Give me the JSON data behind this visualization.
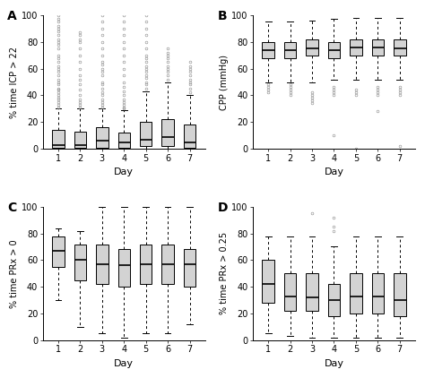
{
  "panels": [
    {
      "label": "A",
      "ylabel": "% time ICP > 22",
      "xlabel": "Day",
      "ylim": [
        0,
        100
      ],
      "yticks": [
        0,
        20,
        40,
        60,
        80,
        100
      ],
      "days": [
        1,
        2,
        3,
        4,
        5,
        6,
        7
      ],
      "boxes": [
        {
          "q1": 1,
          "median": 3,
          "q3": 14,
          "whislo": 0,
          "whishi": 30,
          "fliers_high": [
            31,
            33,
            35,
            37,
            38,
            40,
            42,
            44,
            45,
            48,
            50,
            52,
            55,
            58,
            60,
            62,
            65,
            68,
            70,
            75,
            78,
            80,
            82,
            85,
            88,
            90,
            92,
            95,
            97,
            100
          ]
        },
        {
          "q1": 1,
          "median": 3,
          "q3": 13,
          "whislo": 0,
          "whishi": 30,
          "fliers_high": [
            31,
            33,
            35,
            37,
            40,
            44,
            48,
            52,
            55,
            60,
            65,
            70,
            75,
            80,
            82,
            85,
            87
          ]
        },
        {
          "q1": 1,
          "median": 6,
          "q3": 16,
          "whislo": 0,
          "whishi": 30,
          "fliers_high": [
            31,
            33,
            35,
            37,
            40,
            42,
            45,
            48,
            50,
            55,
            58,
            60,
            63,
            65,
            70,
            75,
            80,
            85,
            90,
            95,
            100
          ]
        },
        {
          "q1": 1,
          "median": 5,
          "q3": 12,
          "whislo": 0,
          "whishi": 29,
          "fliers_high": [
            30,
            31,
            33,
            35,
            37,
            40,
            43,
            46,
            50,
            55,
            60,
            65,
            70,
            75,
            80,
            85,
            90,
            95,
            100
          ]
        },
        {
          "q1": 2,
          "median": 7,
          "q3": 20,
          "whislo": 0,
          "whishi": 43,
          "fliers_high": [
            45,
            48,
            50,
            53,
            55,
            58,
            60,
            62,
            65,
            68,
            70,
            75,
            80,
            85,
            90,
            95,
            100
          ]
        },
        {
          "q1": 2,
          "median": 9,
          "q3": 22,
          "whislo": 0,
          "whishi": 50,
          "fliers_high": [
            52,
            55,
            58,
            60,
            62,
            65,
            68,
            70,
            72,
            75
          ]
        },
        {
          "q1": 1,
          "median": 5,
          "q3": 18,
          "whislo": 0,
          "whishi": 40,
          "fliers_high": [
            42,
            45,
            48,
            50,
            52,
            55,
            58,
            60,
            62,
            65
          ]
        }
      ]
    },
    {
      "label": "B",
      "ylabel": "CPP (mmHg)",
      "xlabel": "Day",
      "ylim": [
        0,
        100
      ],
      "yticks": [
        0,
        20,
        40,
        60,
        80,
        100
      ],
      "days": [
        1,
        2,
        3,
        4,
        5,
        6,
        7
      ],
      "boxes": [
        {
          "q1": 68,
          "median": 74,
          "q3": 80,
          "whislo": 50,
          "whishi": 95,
          "fliers_low": [
            42,
            44,
            46,
            48
          ],
          "fliers_high": []
        },
        {
          "q1": 68,
          "median": 74,
          "q3": 80,
          "whislo": 50,
          "whishi": 95,
          "fliers_low": [
            40,
            42,
            44,
            46,
            48
          ],
          "fliers_high": []
        },
        {
          "q1": 70,
          "median": 75,
          "q3": 82,
          "whislo": 50,
          "whishi": 96,
          "fliers_low": [
            34,
            36,
            38,
            40,
            42
          ],
          "fliers_high": []
        },
        {
          "q1": 68,
          "median": 74,
          "q3": 80,
          "whislo": 52,
          "whishi": 97,
          "fliers_low": [
            10,
            40,
            42,
            44,
            46
          ],
          "fliers_high": []
        },
        {
          "q1": 70,
          "median": 76,
          "q3": 82,
          "whislo": 52,
          "whishi": 98,
          "fliers_low": [
            0,
            40,
            42,
            44
          ],
          "fliers_high": []
        },
        {
          "q1": 70,
          "median": 76,
          "q3": 82,
          "whislo": 52,
          "whishi": 98,
          "fliers_low": [
            28,
            40,
            42,
            44,
            46
          ],
          "fliers_high": []
        },
        {
          "q1": 70,
          "median": 75,
          "q3": 82,
          "whislo": 52,
          "whishi": 98,
          "fliers_low": [
            2,
            40,
            42,
            44,
            46
          ],
          "fliers_high": []
        }
      ]
    },
    {
      "label": "C",
      "ylabel": "% time PRx > 0",
      "xlabel": "Day",
      "ylim": [
        0,
        100
      ],
      "yticks": [
        0,
        20,
        40,
        60,
        80,
        100
      ],
      "days": [
        1,
        2,
        3,
        4,
        5,
        6,
        7
      ],
      "boxes": [
        {
          "q1": 55,
          "median": 67,
          "q3": 78,
          "whislo": 30,
          "whishi": 84,
          "fliers_low": [],
          "fliers_high": []
        },
        {
          "q1": 45,
          "median": 60,
          "q3": 72,
          "whislo": 10,
          "whishi": 82,
          "fliers_low": [],
          "fliers_high": []
        },
        {
          "q1": 42,
          "median": 57,
          "q3": 72,
          "whislo": 5,
          "whishi": 100,
          "fliers_low": [],
          "fliers_high": []
        },
        {
          "q1": 40,
          "median": 56,
          "q3": 68,
          "whislo": 2,
          "whishi": 100,
          "fliers_low": [],
          "fliers_high": []
        },
        {
          "q1": 42,
          "median": 57,
          "q3": 72,
          "whislo": 5,
          "whishi": 100,
          "fliers_low": [],
          "fliers_high": []
        },
        {
          "q1": 42,
          "median": 57,
          "q3": 72,
          "whislo": 5,
          "whishi": 100,
          "fliers_low": [],
          "fliers_high": []
        },
        {
          "q1": 40,
          "median": 57,
          "q3": 68,
          "whislo": 12,
          "whishi": 100,
          "fliers_low": [],
          "fliers_high": []
        }
      ]
    },
    {
      "label": "D",
      "ylabel": "% time PRx > 0.25",
      "xlabel": "Day",
      "ylim": [
        0,
        100
      ],
      "yticks": [
        0,
        20,
        40,
        60,
        80,
        100
      ],
      "days": [
        1,
        2,
        3,
        4,
        5,
        6,
        7
      ],
      "boxes": [
        {
          "q1": 28,
          "median": 42,
          "q3": 60,
          "whislo": 5,
          "whishi": 78,
          "fliers_low": [],
          "fliers_high": []
        },
        {
          "q1": 22,
          "median": 33,
          "q3": 50,
          "whislo": 3,
          "whishi": 78,
          "fliers_low": [],
          "fliers_high": []
        },
        {
          "q1": 22,
          "median": 32,
          "q3": 50,
          "whislo": 2,
          "whishi": 78,
          "fliers_low": [],
          "fliers_high": [
            95
          ]
        },
        {
          "q1": 18,
          "median": 30,
          "q3": 42,
          "whislo": 2,
          "whishi": 70,
          "fliers_low": [],
          "fliers_high": [
            82,
            85,
            92
          ]
        },
        {
          "q1": 20,
          "median": 33,
          "q3": 50,
          "whislo": 2,
          "whishi": 78,
          "fliers_low": [],
          "fliers_high": []
        },
        {
          "q1": 20,
          "median": 33,
          "q3": 50,
          "whislo": 2,
          "whishi": 78,
          "fliers_low": [],
          "fliers_high": []
        },
        {
          "q1": 18,
          "median": 30,
          "q3": 50,
          "whislo": 2,
          "whishi": 78,
          "fliers_low": [],
          "fliers_high": []
        }
      ]
    }
  ],
  "box_facecolor": "#d3d3d3",
  "box_edgecolor": "#000000",
  "median_color": "#000000",
  "whisker_color": "#000000",
  "cap_color": "#000000",
  "flier_color": "#888888",
  "flier_marker": "o",
  "flier_size": 2.0,
  "box_width": 0.55,
  "line_width": 0.7,
  "median_linewidth": 1.2
}
